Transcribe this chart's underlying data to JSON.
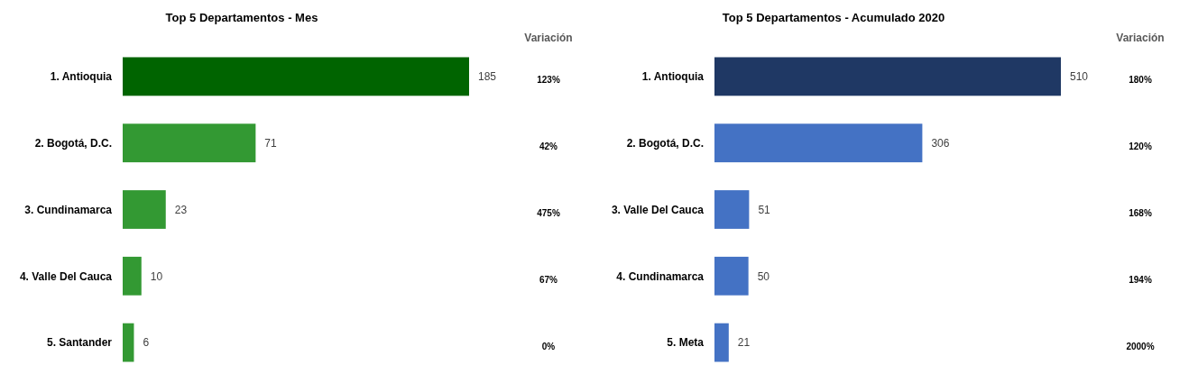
{
  "chart_data": [
    {
      "type": "bar",
      "orientation": "horizontal",
      "title": "Top 5 Departamentos - Mes",
      "categories": [
        "1. Antioquia",
        "2. Bogotá, D.C.",
        "3. Cundinamarca",
        "4. Valle Del Cauca",
        "5. Santander"
      ],
      "values": [
        185,
        71,
        23,
        10,
        6
      ],
      "colors": [
        "#006400",
        "#339933",
        "#339933",
        "#339933",
        "#339933"
      ],
      "data_labels": true,
      "annotations": [
        "Variación",
        "123%",
        "42%",
        "475%",
        "67%",
        "0%"
      ]
    },
    {
      "type": "bar",
      "orientation": "horizontal",
      "title": "Top 5 Departamentos - Acumulado 2020",
      "categories": [
        "1. Antioquia",
        "2. Bogotá, D.C.",
        "3. Valle Del Cauca",
        "4. Cundinamarca",
        "5. Meta"
      ],
      "values": [
        510,
        306,
        51,
        50,
        21
      ],
      "colors": [
        "#1f3864",
        "#4472c4",
        "#4472c4",
        "#4472c4",
        "#4472c4"
      ],
      "data_labels": true,
      "annotations": [
        "Variación",
        "180%",
        "120%",
        "168%",
        "194%",
        "2000%"
      ]
    }
  ]
}
